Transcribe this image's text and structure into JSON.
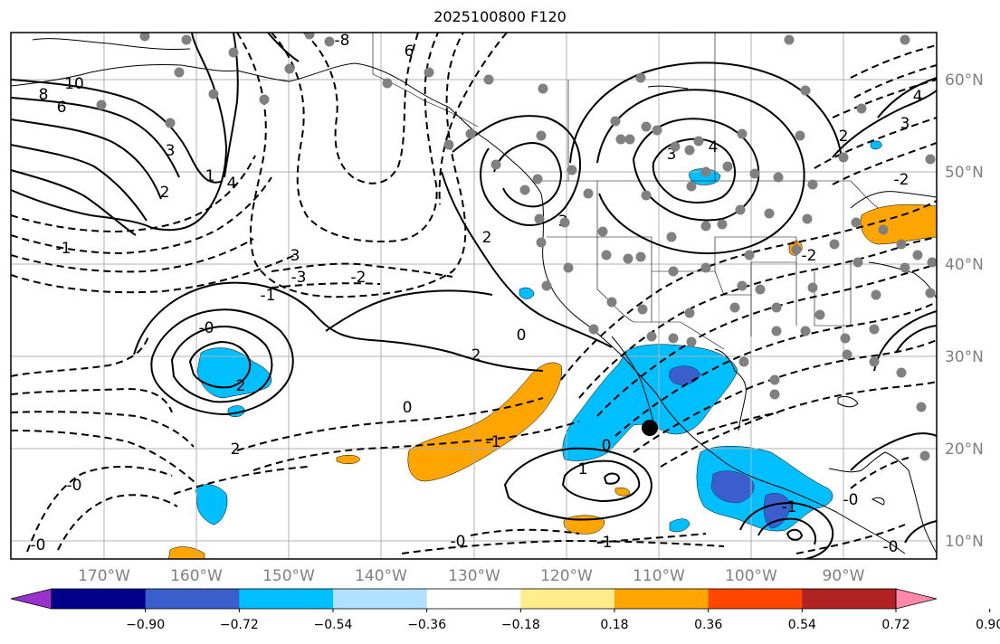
{
  "title": "2025100800 F120",
  "lon_labels": [
    "170°W",
    "160°W",
    "150°W",
    "140°W",
    "130°W",
    "120°W",
    "110°W",
    "100°W",
    "90°W"
  ],
  "lat_labels": [
    "60°N",
    "50°N",
    "40°N",
    "30°N",
    "20°N",
    "10°N"
  ],
  "colorbar": {
    "tick_labels": [
      "−0.90",
      "−0.72",
      "−0.54",
      "−0.36",
      "−0.18",
      "0.18",
      "0.36",
      "0.54",
      "0.72",
      "0.90"
    ],
    "colors": [
      "#9932cc",
      "#00008b",
      "#3a5fcd",
      "#00bfff",
      "#b0e2ff",
      "#ffffff",
      "#ffec8b",
      "#ffa500",
      "#ff4500",
      "#b22222",
      "#ff88aa"
    ]
  },
  "contour_labels": [
    {
      "text": "10"
    },
    {
      "text": "8"
    },
    {
      "text": "6"
    },
    {
      "text": "-8"
    },
    {
      "text": "6"
    },
    {
      "text": "3"
    },
    {
      "text": "2"
    },
    {
      "text": "1"
    },
    {
      "text": "4"
    },
    {
      "text": "-1"
    },
    {
      "text": "3"
    },
    {
      "text": "-3"
    },
    {
      "text": "-2"
    },
    {
      "text": "-1"
    },
    {
      "text": "-0"
    },
    {
      "text": "2"
    },
    {
      "text": "2"
    },
    {
      "text": "0"
    },
    {
      "text": "-1"
    },
    {
      "text": "-0"
    },
    {
      "text": "-0"
    },
    {
      "text": "0"
    },
    {
      "text": "1"
    },
    {
      "text": "-0"
    },
    {
      "text": "-1"
    },
    {
      "text": "3"
    },
    {
      "text": "4"
    },
    {
      "text": "3"
    },
    {
      "text": "2"
    },
    {
      "text": "-2"
    },
    {
      "text": "-1"
    },
    {
      "text": "0"
    },
    {
      "text": "-0"
    },
    {
      "text": "-0"
    },
    {
      "text": "4"
    },
    {
      "text": "3"
    },
    {
      "text": "2"
    },
    {
      "text": "-2"
    },
    {
      "text": "2"
    }
  ],
  "colors": {
    "orange": "#ffa500",
    "light_blue": "#00bfff",
    "mid_blue": "#3a5fcd",
    "grid": "#b0b0b0",
    "tick_text": "#808080",
    "station_dot": "#808080"
  }
}
